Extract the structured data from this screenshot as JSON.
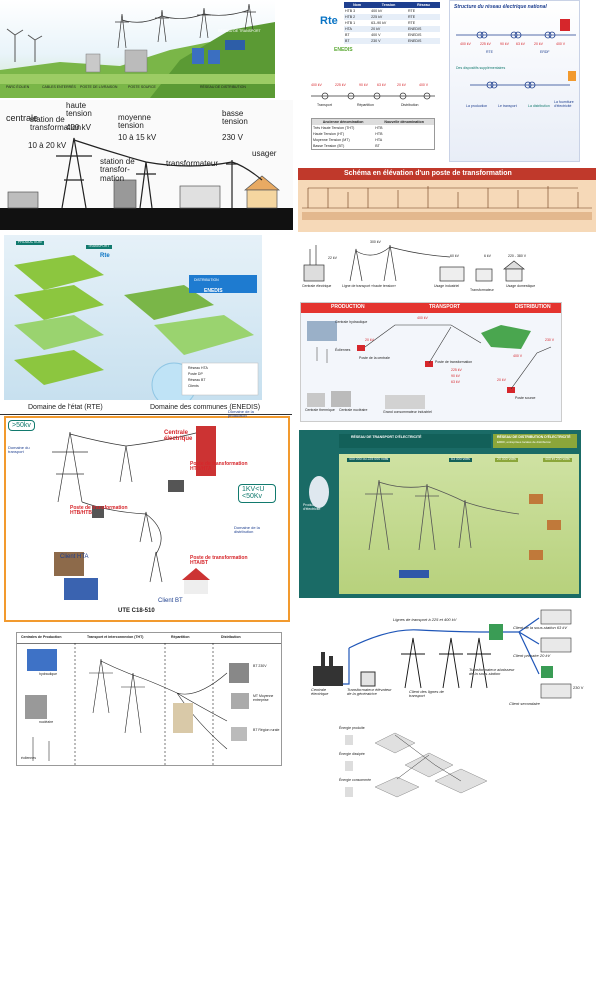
{
  "t1": {
    "labels": [
      "PARC ÉOLIEN",
      "CABLES ENTERRÉS",
      "POSTE DE LIVRAISON",
      "POSTE SOURCE",
      "RÉSEAU DE DISTRIBUTION",
      "RÉSEAU DE TRANSPORT"
    ]
  },
  "t2": {
    "rte": "Rte",
    "enedis": "ENEDIS",
    "headers": [
      "Nom",
      "Tension",
      "Réseau"
    ],
    "rows": [
      [
        "HTB 3",
        "400 kV",
        "RTE"
      ],
      [
        "HTB 2",
        "225 kV",
        "RTE"
      ],
      [
        "HTB 1",
        "63–90 kV",
        "RTE"
      ],
      [
        "HTA",
        "20 kV",
        "ENEDIS"
      ],
      [
        "BT",
        "400 V",
        "ENEDIS"
      ],
      [
        "BT",
        "230 V",
        "ENEDIS"
      ]
    ]
  },
  "t3": {
    "title": "Structure du réseau électrique national",
    "labels": [
      "La production",
      "Le transport",
      "La distribution",
      "La fourniture d'électricité",
      "Des dispositifs supplémentaires",
      "RTE",
      "ERDF",
      "400 kV",
      "225 kV",
      "90 kV",
      "63 kV",
      "20 kV",
      "400 V"
    ]
  },
  "t4": {
    "labels": [
      "centrale",
      "10 à 20 kV",
      "station de transformation",
      "haute tension",
      "400 kV",
      "moyenne tension",
      "10 à 15 kV",
      "station de transfor-mation",
      "transformateur",
      "basse tension",
      "230 V",
      "usager"
    ]
  },
  "t5": {
    "labels": [
      "400 kV",
      "225 kV",
      "90 kV",
      "63 kV",
      "20 kV",
      "400 V",
      "Transport",
      "Répartition",
      "Distribution"
    ],
    "table_title1": "Ancienne dénomination",
    "table_title2": "Nouvelle dénomination",
    "rows": [
      [
        "Très Haute Tension (THT)",
        "HTB"
      ],
      [
        "Haute Tension (HT)",
        "HTB"
      ],
      [
        "Moyenne Tension (MT)",
        "HTA"
      ],
      [
        "Basse Tension (BT)",
        "BT"
      ]
    ]
  },
  "t6": {
    "title": "Schéma en élévation d'un poste de transformation"
  },
  "t7": {
    "labels": [
      "PRODUCTION",
      "TRANSPORT",
      "DISTRIBUTION",
      "ENEDIS",
      "Rte",
      "Réseau HTA",
      "Poste DP",
      "Réseau BT",
      "Clients"
    ]
  },
  "t8": {
    "labels": [
      "Centrale électrique",
      "Ligne de transport «haute tension»",
      "Usage industriel",
      "Transformateur",
      "Usage domestique",
      "22 kV",
      "300 kV",
      "60 kV",
      "6 kV",
      "220 - 380 V"
    ]
  },
  "t9": {
    "headers": [
      "PRODUCTION",
      "TRANSPORT",
      "DISTRIBUTION"
    ],
    "labels": [
      "Centrale hydraulique",
      "Éoliennes",
      "Centrale thermique",
      "Centrale nucléaire",
      "20 kV",
      "Poste de la centrale",
      "400 kV",
      "Poste de transformation",
      "225 kV",
      "90 kV",
      "63 kV",
      "Grand consommateur industriel",
      "Poste source",
      "20 kV",
      "400 V",
      "230 V"
    ]
  },
  "t10": {
    "domain_rte": "Domaine de l'état (RTE)",
    "domain_enedis": "Domaine des communes (ENEDIS)",
    "labels": [
      ">50kv",
      "Domaine du transport",
      "Centrale électrique",
      "Domaine de la production",
      "Poste de transformation HTB/HTA",
      "Poste de transformation HTB/HTB",
      "1KV<U <50Kv",
      "Domaine de la distribution",
      "Client HTA",
      "Poste de transformation HTA/BT",
      "Client BT",
      "UTE C18-510",
      "400 kV",
      "225 kV",
      "90 kV",
      "63 kV",
      "20 kV",
      "230/400 V"
    ]
  },
  "t11": {
    "header_left": "RÉSEAU DE TRANSPORT D'ÉLECTRICITÉ",
    "header_right": "RÉSEAU DE DISTRIBUTION D'ÉLECTRICITÉ",
    "sub_right": "ERDF, entreprises locales de distribution",
    "voltages": [
      "400 000 ou 225 000 volts",
      "63 000 volts",
      "20 000 volts",
      "400 et 230 volts"
    ],
    "left_label": "Production d'électricité"
  },
  "t12": {
    "headers": [
      "Centrales de Production",
      "Transport et interconnexion (THT)",
      "Répartition",
      "Distribution"
    ],
    "labels": [
      "hydraulique",
      "nucléaire",
      "éoliennes",
      "BT 230V",
      "MT Moyenne entreprise",
      "BT Région rurale"
    ]
  },
  "t13": {
    "labels": [
      "Lignes de transport à 225 et 400 kV",
      "Client de la sous-station 63 kV",
      "Client primaire 20 kV",
      "Client secondaire",
      "Transformateur abaisseur de la sous-station",
      "Centrale électrique",
      "Transformateur élévateur de la génératrice",
      "Client des lignes de transport",
      "230 V"
    ]
  },
  "t14": {
    "labels": [
      "Énergie produite",
      "Énergie dissipée",
      "Énergie consommée"
    ]
  },
  "colors": {
    "sky": "#cfe6f2",
    "green": "#8cc63f",
    "blue": "#1e3f8f",
    "orange": "#f29a2e",
    "teal": "#127a6e",
    "red": "#d6262b"
  }
}
